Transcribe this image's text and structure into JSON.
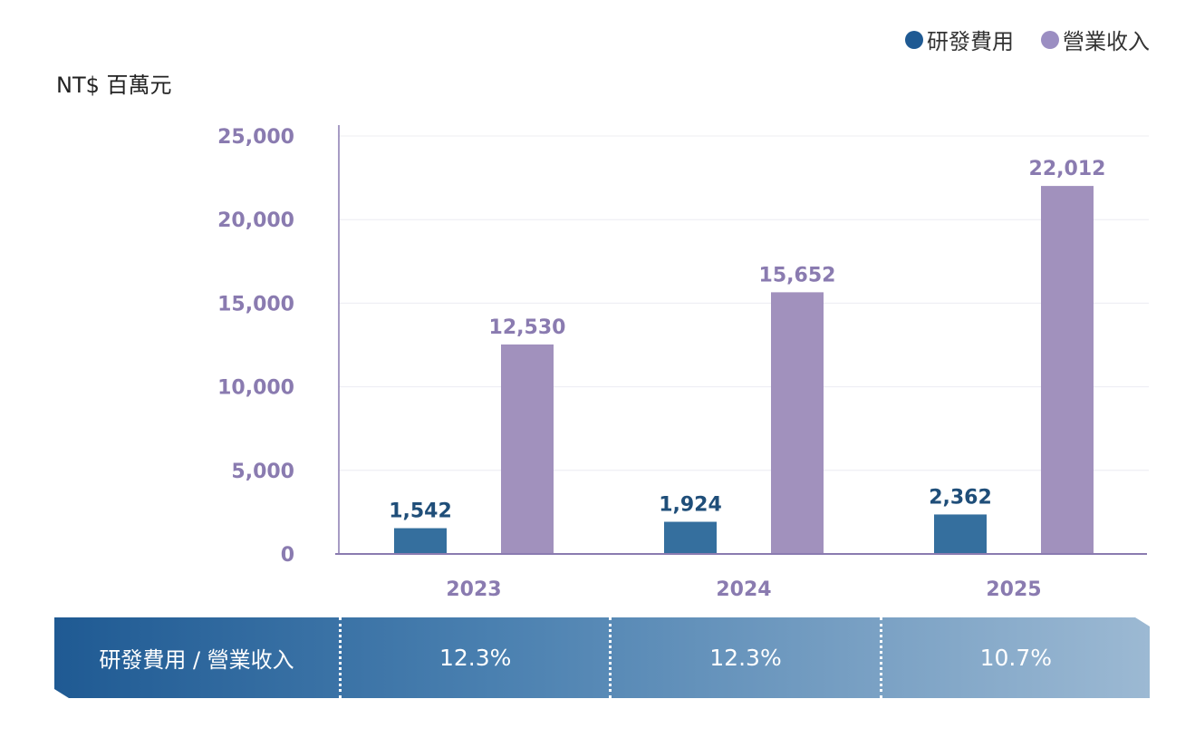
{
  "legend": [
    {
      "label": "研發費用",
      "color": "#1f5a93"
    },
    {
      "label": "營業收入",
      "color": "#9b8ec2"
    }
  ],
  "unit_label": "NT$ 百萬元",
  "chart_data": {
    "type": "bar",
    "categories": [
      "2023",
      "2024",
      "2025"
    ],
    "series": [
      {
        "name": "研發費用",
        "values": [
          1542,
          1924,
          2362
        ],
        "labels": [
          "1,542",
          "1,924",
          "2,362"
        ],
        "color": "#356f9e",
        "label_color": "#1f4e79"
      },
      {
        "name": "營業收入",
        "values": [
          12530,
          15652,
          22012
        ],
        "labels": [
          "12,530",
          "15,652",
          "22,012"
        ],
        "color": "#a191bd",
        "label_color": "#8a7bb0"
      }
    ],
    "ylim": [
      0,
      25000
    ],
    "yticks": [
      0,
      5000,
      10000,
      15000,
      20000,
      25000
    ],
    "ytick_labels": [
      "0",
      "5,000",
      "10,000",
      "15,000",
      "20,000",
      "25,000"
    ],
    "grid": true
  },
  "ratio_row": {
    "header": "研發費用 / 營業收入",
    "values": [
      "12.3%",
      "12.3%",
      "10.7%"
    ]
  }
}
